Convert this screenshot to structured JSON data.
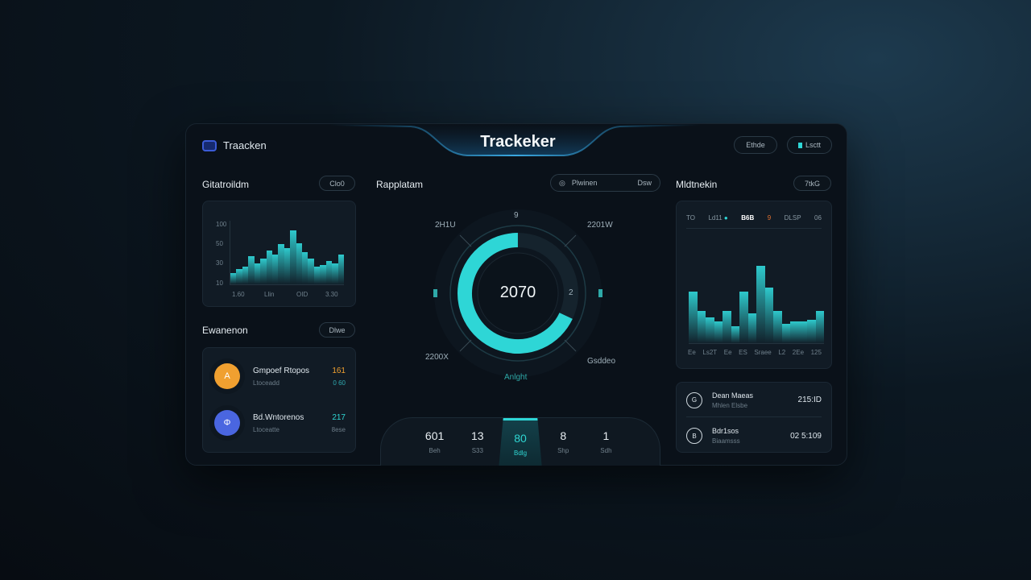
{
  "header": {
    "brand": "Traacken",
    "title": "Trackeker",
    "buttons": [
      "Ethde",
      "Lsctt"
    ]
  },
  "left_chart": {
    "title": "Gitatroildm",
    "button": "Clo0",
    "y_ticks": [
      "100",
      "50",
      "30",
      "10"
    ],
    "x_ticks": [
      "1.60",
      "Llin",
      "OID",
      "3.30"
    ],
    "values": [
      18,
      24,
      28,
      44,
      32,
      40,
      52,
      46,
      62,
      56,
      84,
      64,
      50,
      40,
      28,
      30,
      36,
      32,
      46
    ]
  },
  "gauge": {
    "title": "Rapplatam",
    "search": "Plwinen",
    "search_right": "Dsw",
    "value": "2070",
    "labels": {
      "top": "9",
      "top_left": "2H1U",
      "top_right": "2201W",
      "bottom_left": "2200X",
      "bottom_right": "Gsddeo",
      "bottom": "Anlght",
      "right": "2"
    },
    "progress": 0.68,
    "accent": "#2ed6d6"
  },
  "left_list": {
    "title": "Ewanenon",
    "button": "Dlwe",
    "items": [
      {
        "name": "Gmpoef Rtopos",
        "sub": "Ltoceadd",
        "value": "161",
        "sub_value": "0 60",
        "color": "#f0a030",
        "value_color": "#f0a030",
        "icon": "A"
      },
      {
        "name": "Bd.Wntorenos",
        "sub": "Ltoceatte",
        "value": "217",
        "sub_value": "8ese",
        "color": "#4a66e0",
        "value_color": "#2fd6d3",
        "icon": "Φ"
      }
    ]
  },
  "bottom_tabs": [
    {
      "n": "601",
      "s": "Beh"
    },
    {
      "n": "13",
      "s": "S33"
    },
    {
      "n": "80",
      "s": "Bdlg",
      "active": true
    },
    {
      "n": "8",
      "s": "Shp"
    },
    {
      "n": "1",
      "s": "Sdh"
    }
  ],
  "right_chart": {
    "title": "Mldtnekin",
    "button": "7tkG",
    "legend": [
      "TO",
      "Ld11",
      "B6B",
      "9",
      "DLSP",
      "06"
    ],
    "x_ticks": [
      "Ee",
      "Ls2T",
      "Ee",
      "ES",
      "Sraee",
      "L2",
      "2Ee",
      "125"
    ],
    "values": [
      48,
      30,
      24,
      20,
      30,
      16,
      48,
      28,
      72,
      52,
      30,
      18,
      20,
      20,
      22,
      30
    ]
  },
  "right_list": {
    "items": [
      {
        "icon": "G",
        "name": "Dean Maeas",
        "sub": "Mhlen Elsbe",
        "value": "215:ID"
      },
      {
        "icon": "B",
        "name": "Bdr1sos",
        "sub": "Biaamsss",
        "value": "02 5:109"
      }
    ]
  }
}
